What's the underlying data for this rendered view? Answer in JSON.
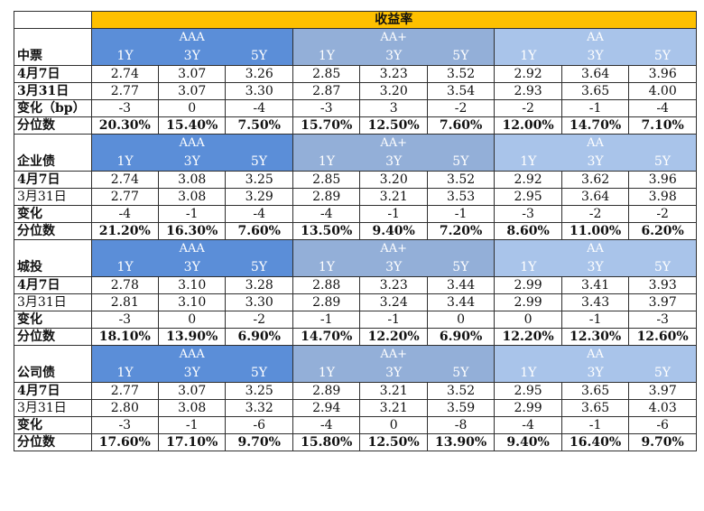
{
  "header": {
    "title": "收益率"
  },
  "sections": [
    {
      "label": "中票",
      "groups": [
        "AAA",
        "AA+",
        "AA"
      ],
      "tenors": [
        "1Y",
        "3Y",
        "5Y",
        "1Y",
        "3Y",
        "5Y",
        "1Y",
        "3Y",
        "5Y"
      ],
      "rows": [
        {
          "label": "4月7日",
          "label_bold": true,
          "bold": false,
          "values": [
            "2.74",
            "3.07",
            "3.26",
            "2.85",
            "3.23",
            "3.52",
            "2.92",
            "3.64",
            "3.96"
          ]
        },
        {
          "label": "3月31日",
          "label_bold": true,
          "bold": false,
          "values": [
            "2.77",
            "3.07",
            "3.30",
            "2.87",
            "3.20",
            "3.54",
            "2.93",
            "3.65",
            "4.00"
          ]
        },
        {
          "label": "变化（bp）",
          "label_bold": true,
          "bold": false,
          "values": [
            "-3",
            "0",
            "-4",
            "-3",
            "3",
            "-2",
            "-2",
            "-1",
            "-4"
          ]
        },
        {
          "label": "分位数",
          "label_bold": true,
          "bold": true,
          "values": [
            "20.30%",
            "15.40%",
            "7.50%",
            "15.70%",
            "12.50%",
            "7.60%",
            "12.00%",
            "14.70%",
            "7.10%"
          ]
        }
      ]
    },
    {
      "label": "企业债",
      "groups": [
        "AAA",
        "AA+",
        "AA"
      ],
      "tenors": [
        "1Y",
        "3Y",
        "5Y",
        "1Y",
        "3Y",
        "5Y",
        "1Y",
        "3Y",
        "5Y"
      ],
      "rows": [
        {
          "label": "4月7日",
          "label_bold": true,
          "bold": false,
          "values": [
            "2.74",
            "3.08",
            "3.25",
            "2.85",
            "3.20",
            "3.52",
            "2.92",
            "3.62",
            "3.96"
          ]
        },
        {
          "label": "3月31日",
          "label_bold": false,
          "bold": false,
          "values": [
            "2.77",
            "3.08",
            "3.29",
            "2.89",
            "3.21",
            "3.53",
            "2.95",
            "3.64",
            "3.98"
          ]
        },
        {
          "label": "变化",
          "label_bold": true,
          "bold": false,
          "values": [
            "-4",
            "-1",
            "-4",
            "-4",
            "-1",
            "-1",
            "-3",
            "-2",
            "-2"
          ]
        },
        {
          "label": "分位数",
          "label_bold": true,
          "bold": true,
          "values": [
            "21.20%",
            "16.30%",
            "7.60%",
            "13.50%",
            "9.40%",
            "7.20%",
            "8.60%",
            "11.00%",
            "6.20%"
          ]
        }
      ]
    },
    {
      "label": "城投",
      "groups": [
        "AAA",
        "AA+",
        "AA"
      ],
      "tenors": [
        "1Y",
        "3Y",
        "5Y",
        "1Y",
        "3Y",
        "5Y",
        "1Y",
        "3Y",
        "5Y"
      ],
      "rows": [
        {
          "label": "4月7日",
          "label_bold": true,
          "bold": false,
          "values": [
            "2.78",
            "3.10",
            "3.28",
            "2.88",
            "3.23",
            "3.44",
            "2.99",
            "3.41",
            "3.93"
          ]
        },
        {
          "label": "3月31日",
          "label_bold": false,
          "bold": false,
          "values": [
            "2.81",
            "3.10",
            "3.30",
            "2.89",
            "3.24",
            "3.44",
            "2.99",
            "3.43",
            "3.97"
          ]
        },
        {
          "label": "变化",
          "label_bold": true,
          "bold": false,
          "values": [
            "-3",
            "0",
            "-2",
            "-1",
            "-1",
            "0",
            "0",
            "-1",
            "-3"
          ]
        },
        {
          "label": "分位数",
          "label_bold": true,
          "bold": true,
          "values": [
            "18.10%",
            "13.90%",
            "6.90%",
            "14.70%",
            "12.20%",
            "6.90%",
            "12.20%",
            "12.30%",
            "12.60%"
          ]
        }
      ]
    },
    {
      "label": "公司债",
      "groups": [
        "AAA",
        "AA+",
        "AA"
      ],
      "tenors": [
        "1Y",
        "3Y",
        "5Y",
        "1Y",
        "3Y",
        "5Y",
        "1Y",
        "3Y",
        "5Y"
      ],
      "rows": [
        {
          "label": "4月7日",
          "label_bold": true,
          "bold": false,
          "values": [
            "2.77",
            "3.07",
            "3.25",
            "2.89",
            "3.21",
            "3.52",
            "2.95",
            "3.65",
            "3.97"
          ]
        },
        {
          "label": "3月31日",
          "label_bold": false,
          "bold": false,
          "values": [
            "2.80",
            "3.08",
            "3.32",
            "2.94",
            "3.21",
            "3.59",
            "2.99",
            "3.65",
            "4.03"
          ]
        },
        {
          "label": "变化",
          "label_bold": true,
          "bold": false,
          "values": [
            "-3",
            "-1",
            "-6",
            "-4",
            "0",
            "-8",
            "-4",
            "-1",
            "-6"
          ]
        },
        {
          "label": "分位数",
          "label_bold": true,
          "bold": true,
          "values": [
            "17.60%",
            "17.10%",
            "9.70%",
            "15.80%",
            "12.50%",
            "13.90%",
            "9.40%",
            "16.40%",
            "9.70%"
          ]
        }
      ]
    }
  ],
  "colors": {
    "header_bg": "#fec000",
    "aaa_bg": "#5b8ed8",
    "aaplus_bg": "#93afd8",
    "aa_bg": "#a9c4ea",
    "header_text": "#ffffff"
  }
}
